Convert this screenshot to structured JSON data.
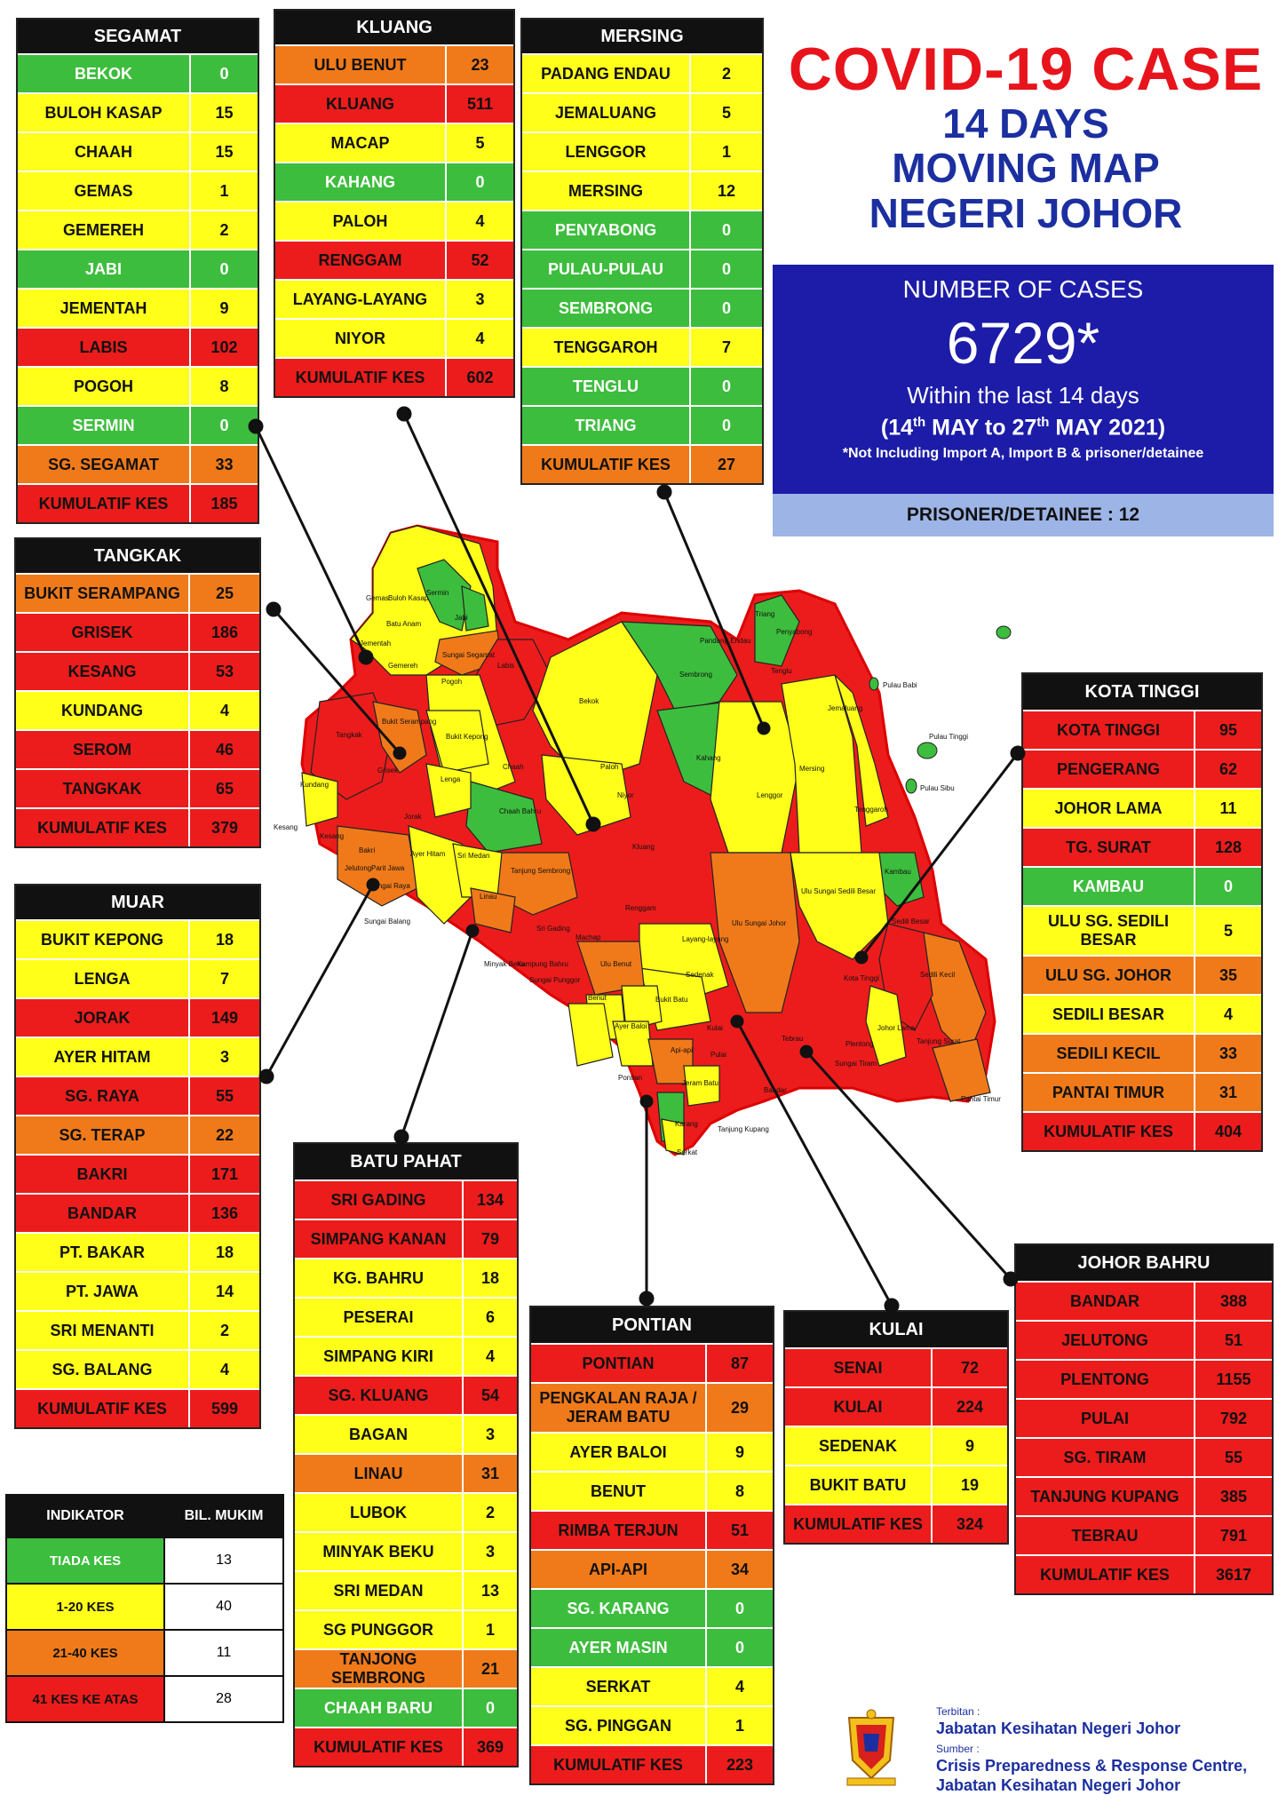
{
  "title": {
    "line1": "COVID-19 CASE",
    "line2": "14 DAYS",
    "line3": "MOVING MAP",
    "line4": "NEGERI JOHOR"
  },
  "summary": {
    "label": "NUMBER OF CASES",
    "total": "6729*",
    "within": "Within the last 14 days",
    "range_prefix": "(14",
    "range_sup1": "th",
    "range_mid": " MAY to 27",
    "range_sup2": "th",
    "range_suffix": " MAY 2021)",
    "note": "*Not Including Import A, Import B & prisoner/detainee",
    "prisoner": "PRISONER/DETAINEE : 12",
    "colors": {
      "box": "#1c1ca8",
      "prisoner_bar": "#9db4e6",
      "title_red": "#e8141c",
      "title_blue": "#1c2fa0"
    }
  },
  "districts": {
    "segamat": {
      "name": "SEGAMAT",
      "rows": [
        {
          "n": "BEKOK",
          "v": "0",
          "c": "g"
        },
        {
          "n": "BULOH KASAP",
          "v": "15",
          "c": "y"
        },
        {
          "n": "CHAAH",
          "v": "15",
          "c": "y"
        },
        {
          "n": "GEMAS",
          "v": "1",
          "c": "y"
        },
        {
          "n": "GEMEREH",
          "v": "2",
          "c": "y"
        },
        {
          "n": "JABI",
          "v": "0",
          "c": "g"
        },
        {
          "n": "JEMENTAH",
          "v": "9",
          "c": "y"
        },
        {
          "n": "LABIS",
          "v": "102",
          "c": "r"
        },
        {
          "n": "POGOH",
          "v": "8",
          "c": "y"
        },
        {
          "n": "SERMIN",
          "v": "0",
          "c": "g"
        },
        {
          "n": "SG. SEGAMAT",
          "v": "33",
          "c": "o"
        },
        {
          "n": "KUMULATIF KES",
          "v": "185",
          "c": "k"
        }
      ]
    },
    "kluang": {
      "name": "KLUANG",
      "rows": [
        {
          "n": "ULU BENUT",
          "v": "23",
          "c": "o"
        },
        {
          "n": "KLUANG",
          "v": "511",
          "c": "r"
        },
        {
          "n": "MACAP",
          "v": "5",
          "c": "y"
        },
        {
          "n": "KAHANG",
          "v": "0",
          "c": "g"
        },
        {
          "n": "PALOH",
          "v": "4",
          "c": "y"
        },
        {
          "n": "RENGGAM",
          "v": "52",
          "c": "r"
        },
        {
          "n": "LAYANG-LAYANG",
          "v": "3",
          "c": "y"
        },
        {
          "n": "NIYOR",
          "v": "4",
          "c": "y"
        },
        {
          "n": "KUMULATIF KES",
          "v": "602",
          "c": "k"
        }
      ]
    },
    "mersing": {
      "name": "MERSING",
      "rows": [
        {
          "n": "PADANG ENDAU",
          "v": "2",
          "c": "y"
        },
        {
          "n": "JEMALUANG",
          "v": "5",
          "c": "y"
        },
        {
          "n": "LENGGOR",
          "v": "1",
          "c": "y"
        },
        {
          "n": "MERSING",
          "v": "12",
          "c": "y"
        },
        {
          "n": "PENYABONG",
          "v": "0",
          "c": "g"
        },
        {
          "n": "PULAU-PULAU",
          "v": "0",
          "c": "g"
        },
        {
          "n": "SEMBRONG",
          "v": "0",
          "c": "g"
        },
        {
          "n": "TENGGAROH",
          "v": "7",
          "c": "y"
        },
        {
          "n": "TENGLU",
          "v": "0",
          "c": "g"
        },
        {
          "n": "TRIANG",
          "v": "0",
          "c": "g"
        },
        {
          "n": "KUMULATIF KES",
          "v": "27",
          "c": "o"
        }
      ]
    },
    "tangkak": {
      "name": "TANGKAK",
      "rows": [
        {
          "n": "BUKIT SERAMPANG",
          "v": "25",
          "c": "o"
        },
        {
          "n": "GRISEK",
          "v": "186",
          "c": "r"
        },
        {
          "n": "KESANG",
          "v": "53",
          "c": "r"
        },
        {
          "n": "KUNDANG",
          "v": "4",
          "c": "y"
        },
        {
          "n": "SEROM",
          "v": "46",
          "c": "r"
        },
        {
          "n": "TANGKAK",
          "v": "65",
          "c": "r"
        },
        {
          "n": "KUMULATIF KES",
          "v": "379",
          "c": "k"
        }
      ]
    },
    "muar": {
      "name": "MUAR",
      "rows": [
        {
          "n": "BUKIT KEPONG",
          "v": "18",
          "c": "y"
        },
        {
          "n": "LENGA",
          "v": "7",
          "c": "y"
        },
        {
          "n": "JORAK",
          "v": "149",
          "c": "r"
        },
        {
          "n": "AYER HITAM",
          "v": "3",
          "c": "y"
        },
        {
          "n": "SG. RAYA",
          "v": "55",
          "c": "r"
        },
        {
          "n": "SG. TERAP",
          "v": "22",
          "c": "o"
        },
        {
          "n": "BAKRI",
          "v": "171",
          "c": "r"
        },
        {
          "n": "BANDAR",
          "v": "136",
          "c": "r"
        },
        {
          "n": "PT. BAKAR",
          "v": "18",
          "c": "y"
        },
        {
          "n": "PT. JAWA",
          "v": "14",
          "c": "y"
        },
        {
          "n": "SRI MENANTI",
          "v": "2",
          "c": "y"
        },
        {
          "n": "SG. BALANG",
          "v": "4",
          "c": "y"
        },
        {
          "n": "KUMULATIF KES",
          "v": "599",
          "c": "k"
        }
      ]
    },
    "batu_pahat": {
      "name": "BATU PAHAT",
      "rows": [
        {
          "n": "SRI GADING",
          "v": "134",
          "c": "r"
        },
        {
          "n": "SIMPANG KANAN",
          "v": "79",
          "c": "r"
        },
        {
          "n": "KG. BAHRU",
          "v": "18",
          "c": "y"
        },
        {
          "n": "PESERAI",
          "v": "6",
          "c": "y"
        },
        {
          "n": "SIMPANG KIRI",
          "v": "4",
          "c": "y"
        },
        {
          "n": "SG. KLUANG",
          "v": "54",
          "c": "r"
        },
        {
          "n": "BAGAN",
          "v": "3",
          "c": "y"
        },
        {
          "n": "LINAU",
          "v": "31",
          "c": "o"
        },
        {
          "n": "LUBOK",
          "v": "2",
          "c": "y"
        },
        {
          "n": "MINYAK BEKU",
          "v": "3",
          "c": "y"
        },
        {
          "n": "SRI MEDAN",
          "v": "13",
          "c": "y"
        },
        {
          "n": "SG PUNGGOR",
          "v": "1",
          "c": "y"
        },
        {
          "n": "TANJONG SEMBRONG",
          "v": "21",
          "c": "o"
        },
        {
          "n": "CHAAH BARU",
          "v": "0",
          "c": "g"
        },
        {
          "n": "KUMULATIF KES",
          "v": "369",
          "c": "k"
        }
      ]
    },
    "pontian": {
      "name": "PONTIAN",
      "rows": [
        {
          "n": "PONTIAN",
          "v": "87",
          "c": "r"
        },
        {
          "n": "PENGKALAN RAJA / JERAM BATU",
          "v": "29",
          "c": "o"
        },
        {
          "n": "AYER BALOI",
          "v": "9",
          "c": "y"
        },
        {
          "n": "BENUT",
          "v": "8",
          "c": "y"
        },
        {
          "n": "RIMBA TERJUN",
          "v": "51",
          "c": "r"
        },
        {
          "n": "API-API",
          "v": "34",
          "c": "o"
        },
        {
          "n": "SG. KARANG",
          "v": "0",
          "c": "g"
        },
        {
          "n": "AYER MASIN",
          "v": "0",
          "c": "g"
        },
        {
          "n": "SERKAT",
          "v": "4",
          "c": "y"
        },
        {
          "n": "SG. PINGGAN",
          "v": "1",
          "c": "y"
        },
        {
          "n": "KUMULATIF KES",
          "v": "223",
          "c": "k"
        }
      ]
    },
    "kulai": {
      "name": "KULAI",
      "rows": [
        {
          "n": "SENAI",
          "v": "72",
          "c": "r"
        },
        {
          "n": "KULAI",
          "v": "224",
          "c": "r"
        },
        {
          "n": "SEDENAK",
          "v": "9",
          "c": "y"
        },
        {
          "n": "BUKIT BATU",
          "v": "19",
          "c": "y"
        },
        {
          "n": "KUMULATIF KES",
          "v": "324",
          "c": "k"
        }
      ]
    },
    "kota_tinggi": {
      "name": "KOTA TINGGI",
      "rows": [
        {
          "n": "KOTA TINGGI",
          "v": "95",
          "c": "r"
        },
        {
          "n": "PENGERANG",
          "v": "62",
          "c": "r"
        },
        {
          "n": "JOHOR LAMA",
          "v": "11",
          "c": "y"
        },
        {
          "n": "TG. SURAT",
          "v": "128",
          "c": "r"
        },
        {
          "n": "KAMBAU",
          "v": "0",
          "c": "g"
        },
        {
          "n": "ULU SG. SEDILI BESAR",
          "v": "5",
          "c": "y"
        },
        {
          "n": "ULU  SG. JOHOR",
          "v": "35",
          "c": "o"
        },
        {
          "n": "SEDILI BESAR",
          "v": "4",
          "c": "y"
        },
        {
          "n": "SEDILI KECIL",
          "v": "33",
          "c": "o"
        },
        {
          "n": "PANTAI TIMUR",
          "v": "31",
          "c": "o"
        },
        {
          "n": "KUMULATIF KES",
          "v": "404",
          "c": "k"
        }
      ]
    },
    "johor_bahru": {
      "name": "JOHOR BAHRU",
      "rows": [
        {
          "n": "BANDAR",
          "v": "388",
          "c": "r"
        },
        {
          "n": "JELUTONG",
          "v": "51",
          "c": "r"
        },
        {
          "n": "PLENTONG",
          "v": "1155",
          "c": "r"
        },
        {
          "n": "PULAI",
          "v": "792",
          "c": "r"
        },
        {
          "n": "SG. TIRAM",
          "v": "55",
          "c": "r"
        },
        {
          "n": "TANJUNG KUPANG",
          "v": "385",
          "c": "r"
        },
        {
          "n": "TEBRAU",
          "v": "791",
          "c": "r"
        },
        {
          "n": "KUMULATIF KES",
          "v": "3617",
          "c": "k"
        }
      ]
    }
  },
  "legend": {
    "header": [
      "INDIKATOR",
      "BIL. MUKIM"
    ],
    "rows": [
      {
        "label": "TIADA KES",
        "count": "13",
        "c": "g"
      },
      {
        "label": "1-20 KES",
        "count": "40",
        "c": "y"
      },
      {
        "label": "21-40 KES",
        "count": "11",
        "c": "o"
      },
      {
        "label": "41 KES KE ATAS",
        "count": "28",
        "c": "r"
      }
    ]
  },
  "footer": {
    "terbitan": "Terbitan :",
    "publisher": "Jabatan Kesihatan Negeri Johor",
    "sumber": "Sumber :",
    "source1": "Crisis Preparedness & Response Centre,",
    "source2": "Jabatan Kesihatan Negeri Johor"
  },
  "map_labels": {
    "gemas": "Gemas",
    "buloh_kasap": "Buloh Kasap",
    "sermin": "Sermin",
    "jabi": "Jabi",
    "batu_anam": "Batu Anam",
    "gemereh": "Gemereh",
    "sg_segamat": "Sungai Segamat",
    "jementah": "Jementah",
    "pogoh": "Pogoh",
    "labis": "Labis",
    "bekok": "Bekok",
    "tangkak": "Tangkak",
    "bukit_serampang": "Bukit Serampang",
    "bukit_kepong": "Bukit Kepong",
    "grisek": "Grisek",
    "kundang": "Kundang",
    "lenga": "Lenga",
    "chaah": "Chaah",
    "paloh": "Paloh",
    "niyor": "Niyor",
    "kesang": "Kesang",
    "jorak": "Jorak",
    "chaah_baru": "Chaah Bahru",
    "kluang": "Kluang",
    "bakri": "Bakri",
    "ayer_hitam": "Ayer Hitam",
    "sri_medan": "Sri Medan",
    "tg_sembrong": "Tanjung Sembrong",
    "pt_jawa": "Parit Jawa",
    "sg_balang": "Sungai Balang",
    "linau": "Linau",
    "renggam": "Renggam",
    "sri_gading": "Sri Gading",
    "machap": "Machap",
    "layang": "Layang-layang",
    "ulu_benut": "Ulu Benut",
    "minyak_beku": "Minyak Beku",
    "kg_bahru": "Kampung Bahru",
    "sg_punggor": "Sungai Punggor",
    "benut": "Benut",
    "sedenak": "Sedenak",
    "bukit_batu": "Bukit Batu",
    "ayer_baloi": "Ayer Baloi",
    "pontian": "Pontian",
    "api_api": "Api-api",
    "jeram_batu": "Jeram Batu",
    "serkat": "Serkat",
    "sg_karang": "Karang",
    "kulai": "Kulai",
    "tg_kupang": "Tanjung Kupang",
    "pandang_endau": "Pandang Endau",
    "triang": "Triang",
    "penyabong": "Penyabong",
    "tenglu": "Tenglu",
    "sembrong": "Sembrong",
    "kahang": "Kahang",
    "jemaluang": "Jemaluang",
    "mersing": "Mersing",
    "lenggor": "Lenggor",
    "tenggaroh": "Tenggaroh",
    "pulau_babi": "Pulau Babi",
    "pulau_tinggi": "Pulau Tinggi",
    "pulau_sibu": "Pulau Sibu",
    "kambau": "Kambau",
    "ulu_sedili": "Ulu Sungai Sedili Besar",
    "ulu_sg_johor": "Ulu Sungai Johor",
    "sedili_besar": "Sedili Besar",
    "kota_tinggi": "Kota Tinggi",
    "sedili_kecil": "Sedili Kecil",
    "johor_lama": "Johor Lama",
    "tg_surat": "Tanjung Surat",
    "pantai_timur": "Pantai Timur",
    "plentong": "Plentong",
    "sg_tiram": "Sungai Tiram",
    "tebrau": "Tebrau",
    "pulai": "Pulai",
    "bandar": "Bandar",
    "jelutong": "Jelutong",
    "sungai_raya": "Sungai Raya",
    "kesang2": "Kesang"
  }
}
